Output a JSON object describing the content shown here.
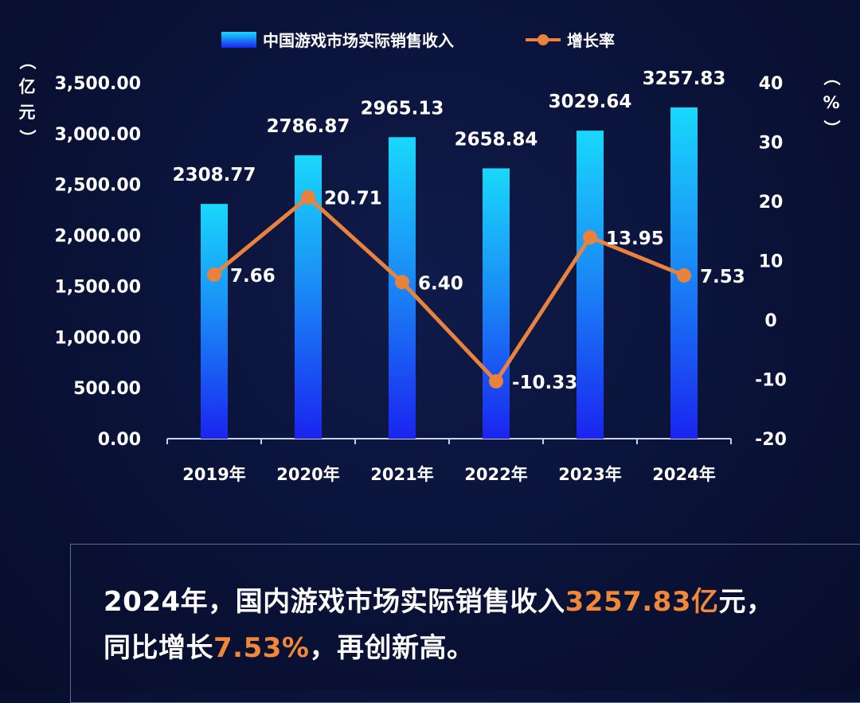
{
  "chart_data": {
    "type": "bar",
    "categories": [
      "2019年",
      "2020年",
      "2021年",
      "2022年",
      "2023年",
      "2024年"
    ],
    "series": [
      {
        "name": "中国游戏市场实际销售收入",
        "kind": "bar",
        "axis": "left",
        "values": [
          2308.77,
          2786.87,
          2965.13,
          2658.84,
          3029.64,
          3257.83
        ],
        "data_labels": [
          "2308.77",
          "2786.87",
          "2965.13",
          "2658.84",
          "3029.64",
          "3257.83"
        ]
      },
      {
        "name": "增长率",
        "kind": "line",
        "axis": "right",
        "values": [
          7.66,
          20.71,
          6.4,
          -10.33,
          13.95,
          7.53
        ],
        "data_labels": [
          "7.66",
          "20.71",
          "6.40",
          "-10.33",
          "13.95",
          "7.53"
        ]
      }
    ],
    "y_left": {
      "unit_label": "（亿元）",
      "ylim": [
        0,
        3500
      ],
      "ticks": [
        "3,500.00",
        "3,000.00",
        "2,500.00",
        "2,000.00",
        "1,500.00",
        "1,000.00",
        "500.00",
        "0.00"
      ],
      "tick_values": [
        3500,
        3000,
        2500,
        2000,
        1500,
        1000,
        500,
        0
      ]
    },
    "y_right": {
      "unit_label": "（%）",
      "ylim": [
        -20,
        40
      ],
      "ticks": [
        "40",
        "30",
        "20",
        "10",
        "0",
        "-10",
        "-20"
      ],
      "tick_values": [
        40,
        30,
        20,
        10,
        0,
        -10,
        -20
      ]
    },
    "legend_position": "top-center",
    "grid": false,
    "colors": {
      "bar_top": "#19d8fb",
      "bar_bottom": "#1a24f0",
      "line": "#e8823c",
      "accent_text": "#f0883a"
    }
  },
  "note": {
    "line1": [
      {
        "text": "2024年，国内游戏市场实际销售收入",
        "accent": false
      },
      {
        "text": "3257.83亿",
        "accent": true
      },
      {
        "text": "元，",
        "accent": false
      }
    ],
    "line2": [
      {
        "text": "同比增长",
        "accent": false
      },
      {
        "text": "7.53%",
        "accent": true
      },
      {
        "text": "，再创新高。",
        "accent": false
      }
    ]
  }
}
